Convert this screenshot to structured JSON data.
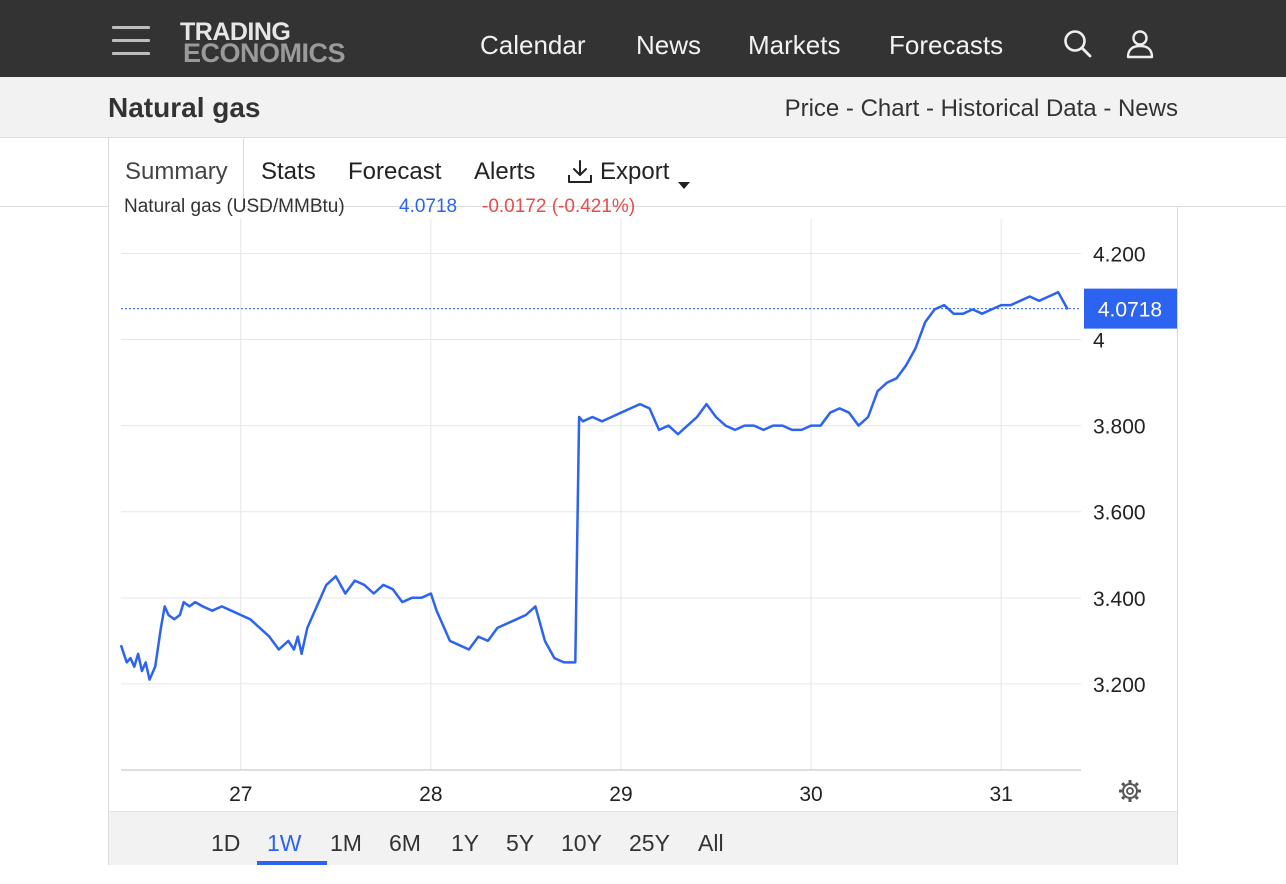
{
  "header": {
    "logo_line1": "TRADING",
    "logo_line2": "ECONOMICS",
    "nav": [
      "Calendar",
      "News",
      "Markets",
      "Forecasts"
    ]
  },
  "title": {
    "name": "Natural gas",
    "breadcrumb": "Price - Chart - Historical Data - News"
  },
  "tabs": {
    "summary": "Summary",
    "stats": "Stats",
    "forecast": "Forecast",
    "alerts": "Alerts",
    "export": "Export"
  },
  "legend": {
    "series": "Natural gas (USD/MMBtu)",
    "last": "4.0718",
    "change": "-0.0172 (-0.421%)"
  },
  "range_buttons": [
    "1D",
    "1W",
    "1M",
    "6M",
    "1Y",
    "5Y",
    "10Y",
    "25Y",
    "All"
  ],
  "active_range": "1W",
  "colors": {
    "line": "#2c63f0",
    "change_negative": "#e84b4b",
    "topbar": "#333333"
  },
  "chart_data": {
    "type": "line",
    "series": [
      {
        "name": "Natural gas (USD/MMBtu)",
        "x": [
          26.37,
          26.4,
          26.42,
          26.44,
          26.46,
          26.48,
          26.5,
          26.52,
          26.55,
          26.58,
          26.6,
          26.62,
          26.65,
          26.68,
          26.7,
          26.73,
          26.76,
          26.8,
          26.85,
          26.9,
          26.95,
          27.0,
          27.05,
          27.1,
          27.15,
          27.2,
          27.25,
          27.28,
          27.3,
          27.32,
          27.35,
          27.4,
          27.45,
          27.5,
          27.55,
          27.6,
          27.65,
          27.7,
          27.75,
          27.8,
          27.85,
          27.9,
          27.95,
          28.0,
          28.03,
          28.06,
          28.1,
          28.15,
          28.2,
          28.25,
          28.3,
          28.35,
          28.4,
          28.45,
          28.5,
          28.55,
          28.6,
          28.65,
          28.7,
          28.74,
          28.76,
          28.78,
          28.8,
          28.85,
          28.9,
          28.95,
          29.0,
          29.05,
          29.1,
          29.15,
          29.2,
          29.25,
          29.3,
          29.35,
          29.4,
          29.45,
          29.5,
          29.55,
          29.6,
          29.65,
          29.7,
          29.75,
          29.8,
          29.85,
          29.9,
          29.95,
          30.0,
          30.05,
          30.1,
          30.15,
          30.2,
          30.25,
          30.3,
          30.35,
          30.4,
          30.45,
          30.5,
          30.55,
          30.6,
          30.65,
          30.7,
          30.75,
          30.8,
          30.85,
          30.9,
          30.95,
          31.0,
          31.05,
          31.1,
          31.15,
          31.2,
          31.25,
          31.3,
          31.35
        ],
        "y": [
          3.29,
          3.25,
          3.26,
          3.24,
          3.27,
          3.23,
          3.25,
          3.21,
          3.24,
          3.33,
          3.38,
          3.36,
          3.35,
          3.36,
          3.39,
          3.38,
          3.39,
          3.38,
          3.37,
          3.38,
          3.37,
          3.36,
          3.35,
          3.33,
          3.31,
          3.28,
          3.3,
          3.28,
          3.31,
          3.27,
          3.33,
          3.38,
          3.43,
          3.45,
          3.41,
          3.44,
          3.43,
          3.41,
          3.43,
          3.42,
          3.39,
          3.4,
          3.4,
          3.41,
          3.37,
          3.34,
          3.3,
          3.29,
          3.28,
          3.31,
          3.3,
          3.33,
          3.34,
          3.35,
          3.36,
          3.38,
          3.3,
          3.26,
          3.25,
          3.25,
          3.25,
          3.82,
          3.81,
          3.82,
          3.81,
          3.82,
          3.83,
          3.84,
          3.85,
          3.84,
          3.79,
          3.8,
          3.78,
          3.8,
          3.82,
          3.85,
          3.82,
          3.8,
          3.79,
          3.8,
          3.8,
          3.79,
          3.8,
          3.8,
          3.79,
          3.79,
          3.8,
          3.8,
          3.83,
          3.84,
          3.83,
          3.8,
          3.82,
          3.88,
          3.9,
          3.91,
          3.94,
          3.98,
          4.04,
          4.07,
          4.08,
          4.06,
          4.06,
          4.07,
          4.06,
          4.07,
          4.08,
          4.08,
          4.09,
          4.1,
          4.09,
          4.1,
          4.11,
          4.07
        ]
      }
    ],
    "last_value": 4.0718,
    "yticks": [
      "4.200",
      "4",
      "3.800",
      "3.600",
      "3.400",
      "3.200"
    ],
    "ytick_values": [
      4.2,
      4.0,
      3.8,
      3.6,
      3.4,
      3.2
    ],
    "xticks": [
      "27",
      "28",
      "29",
      "30",
      "31"
    ],
    "xtick_values": [
      27,
      28,
      29,
      30,
      31
    ],
    "xlim": [
      26.37,
      31.42
    ],
    "ylim": [
      3.0,
      4.28
    ],
    "grid": true,
    "title": "",
    "xlabel": "",
    "ylabel": ""
  }
}
